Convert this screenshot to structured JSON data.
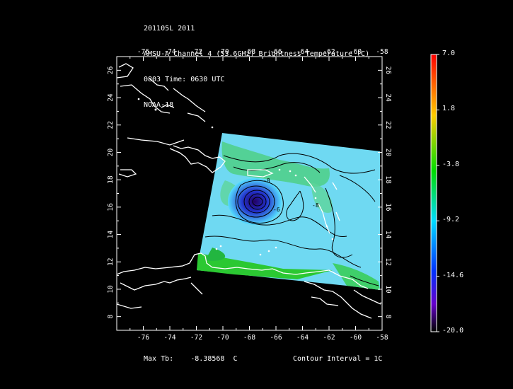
{
  "header": {
    "line1": "201105L 2011",
    "line2": "AMSU-A Channel 4 (53.6GHz) Brightness Temperature (C)",
    "line3": "0803 Time: 0630 UTC",
    "line4": "NOAA-18"
  },
  "map": {
    "lon_ticks": [
      "-76",
      "-74",
      "-72",
      "-70",
      "-68",
      "-66",
      "-64",
      "-62",
      "-60",
      "-58"
    ],
    "lat_ticks": [
      "8",
      "10",
      "12",
      "14",
      "16",
      "18",
      "20",
      "22",
      "24",
      "26"
    ],
    "lon_range": [
      -78,
      -58
    ],
    "lat_range": [
      7,
      27
    ],
    "storm_center": {
      "lon": -67,
      "lat": 16
    },
    "contour_labels": [
      "-8",
      "-6",
      "-8"
    ]
  },
  "colorbar": {
    "labels": [
      "7.0",
      "1.8",
      "-3.8",
      "-9.2",
      "-14.6",
      "-20.0"
    ],
    "colors": [
      "#ff0000",
      "#ffcc00",
      "#00dd00",
      "#00ddff",
      "#0033ff",
      "#6600cc",
      "#000000"
    ]
  },
  "footer": {
    "max_tb_label": "Max Tb:",
    "max_tb_value": "-8.38568",
    "max_tb_unit": "C",
    "contour_interval": "Contour Interval = 1C"
  }
}
